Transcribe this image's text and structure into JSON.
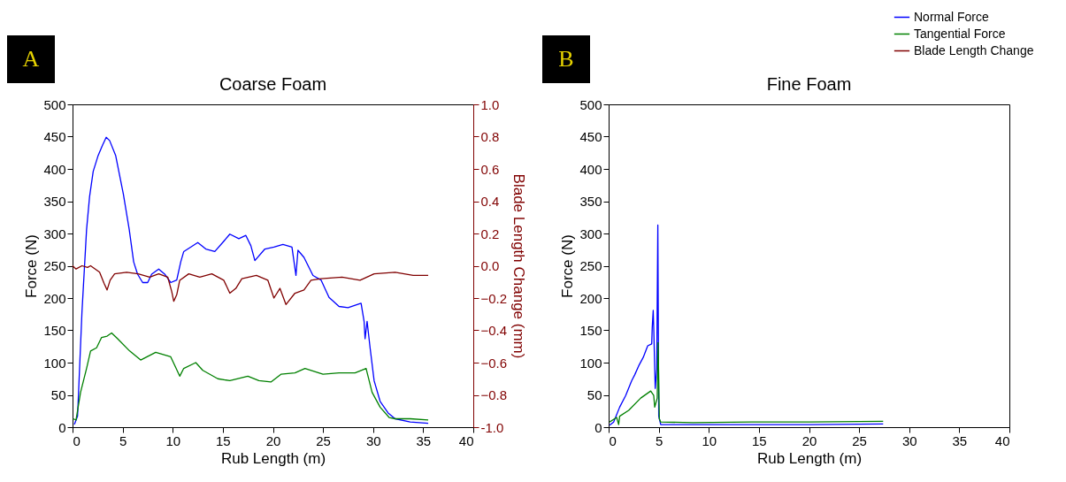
{
  "chart_data": [
    {
      "type": "line",
      "title": "Coarse Foam",
      "xlabel": "Rub Length (m)",
      "ylabel": "Force (N)",
      "y2label": "Blade Length Change (mm)",
      "annotations": [
        "A"
      ],
      "xlim": [
        0,
        40
      ],
      "xticks": [
        0,
        5,
        10,
        15,
        20,
        25,
        30,
        35,
        40
      ],
      "ylim": [
        0,
        500
      ],
      "yticks": [
        0,
        50,
        100,
        150,
        200,
        250,
        300,
        350,
        400,
        450,
        500
      ],
      "legend": "top right",
      "y2lim": [
        -1.0,
        1.0
      ],
      "y2ticks": [
        {
          "value": -1.0,
          "label": "-1.0"
        },
        -0.8,
        -0.6,
        -0.4,
        -0.2,
        {
          "value": 0,
          "label": "0.0"
        },
        0.2,
        0.4,
        0.6,
        0.8,
        {
          "value": 1.0,
          "label": "1.0"
        }
      ],
      "grid": false,
      "series": [
        {
          "name": "Normal Force",
          "color": "#0000ff",
          "x": [
            0.18,
            0.5,
            0.94,
            1.4,
            1.7,
            2.06,
            2.56,
            3.0,
            3.36,
            3.7,
            4.3,
            5.07,
            5.66,
            6.1,
            6.49,
            7.0,
            7.5,
            7.9,
            8.6,
            9.2,
            9.8,
            10.4,
            10.8,
            11.1,
            12.5,
            13.3,
            14.2,
            15.1,
            15.7,
            16.6,
            17.3,
            17.8,
            18.2,
            19.2,
            20.1,
            21.0,
            21.9,
            22.3,
            22.5,
            23.1,
            24.0,
            24.8,
            25.6,
            26.6,
            27.5,
            28.8,
            29.1,
            29.2,
            29.4,
            29.7,
            30.1,
            30.7,
            31.5,
            32.2,
            33.7,
            35.5
          ],
          "values": [
            4,
            17,
            178,
            306,
            357,
            396,
            421,
            437,
            449,
            444,
            421,
            361,
            306,
            256,
            237,
            224,
            224,
            237,
            245,
            237,
            224,
            228,
            256,
            272,
            286,
            276,
            272,
            288,
            299,
            292,
            297,
            281,
            258,
            276,
            279,
            283,
            279,
            235,
            274,
            263,
            235,
            228,
            201,
            187,
            185,
            192,
            164,
            137,
            164,
            123,
            72,
            40,
            22,
            13,
            8,
            6
          ]
        },
        {
          "name": "Tangential Force",
          "color": "#008000",
          "x": [
            0.06,
            0.35,
            0.8,
            1.4,
            1.8,
            2.4,
            2.9,
            3.45,
            3.9,
            4.5,
            5.7,
            6.8,
            8.3,
            9.8,
            10.7,
            11.1,
            12.3,
            13.0,
            14.5,
            15.7,
            17.5,
            18.6,
            19.8,
            20.8,
            22.2,
            23.2,
            25.0,
            26.6,
            28.2,
            29.3,
            29.9,
            30.7,
            31.6,
            32.2,
            33.7,
            35.5
          ],
          "values": [
            13,
            11,
            54,
            91,
            118,
            123,
            139,
            141,
            146,
            137,
            118,
            104,
            116,
            109,
            79,
            91,
            100,
            88,
            75,
            72,
            79,
            72,
            70,
            82,
            84,
            91,
            82,
            84,
            84,
            91,
            54,
            31,
            15,
            13,
            13,
            11
          ]
        },
        {
          "name": "Blade Length Change",
          "color": "#800000",
          "axis": "y2",
          "x": [
            0,
            0.35,
            0.94,
            1.5,
            1.8,
            2.7,
            3.15,
            3.45,
            3.75,
            4.2,
            5.4,
            6.55,
            7.7,
            8.6,
            9.5,
            9.9,
            10.1,
            10.4,
            10.7,
            11.6,
            12.7,
            13.9,
            15.1,
            15.7,
            16.3,
            16.9,
            18.35,
            19.5,
            20.1,
            20.7,
            21.3,
            22.2,
            23.1,
            23.8,
            24.8,
            26.9,
            28.7,
            30.1,
            32.2,
            34.0,
            35.5
          ],
          "values": [
            0.0,
            -0.02,
            0.0,
            -0.01,
            0.0,
            -0.04,
            -0.11,
            -0.15,
            -0.09,
            -0.05,
            -0.04,
            -0.05,
            -0.07,
            -0.05,
            -0.07,
            -0.16,
            -0.22,
            -0.18,
            -0.09,
            -0.05,
            -0.07,
            -0.05,
            -0.09,
            -0.17,
            -0.14,
            -0.08,
            -0.06,
            -0.09,
            -0.2,
            -0.14,
            -0.24,
            -0.17,
            -0.15,
            -0.09,
            -0.08,
            -0.07,
            -0.09,
            -0.05,
            -0.04,
            -0.06,
            -0.06
          ]
        }
      ]
    },
    {
      "type": "line",
      "title": "Fine Foam",
      "xlabel": "Rub Length (m)",
      "ylabel": "Force (N)",
      "annotations": [
        "B"
      ],
      "xlim": [
        0,
        40
      ],
      "xticks": [
        0,
        5,
        10,
        15,
        20,
        25,
        30,
        35,
        40
      ],
      "ylim": [
        0,
        500
      ],
      "yticks": [
        0,
        50,
        100,
        150,
        200,
        250,
        300,
        350,
        400,
        450,
        500
      ],
      "grid": false,
      "series": [
        {
          "color": "#0000ff",
          "x": [
            0.1,
            0.5,
            1.1,
            1.7,
            2.3,
            2.6,
            3.0,
            3.45,
            3.9,
            4.3,
            4.35,
            4.45,
            4.5,
            4.65,
            4.8,
            4.91,
            5.0,
            5.2,
            8.4,
            14.3,
            20.1,
            27.4
          ],
          "values": [
            3,
            8,
            31,
            49,
            72,
            81,
            95,
            108,
            126,
            129,
            154,
            181,
            154,
            60,
            90,
            313,
            17,
            4,
            4,
            4,
            4,
            5
          ]
        },
        {
          "color": "#008000",
          "x": [
            0.1,
            0.8,
            1.0,
            1.1,
            2.0,
            3.2,
            4.2,
            4.5,
            4.6,
            4.85,
            4.94,
            5.06,
            5.2,
            8.4,
            14.3,
            20.1,
            27.4
          ],
          "values": [
            8,
            15,
            4,
            17,
            26,
            45,
            56,
            49,
            31,
            45,
            131,
            13,
            8,
            7,
            8,
            8,
            9
          ]
        }
      ]
    }
  ]
}
